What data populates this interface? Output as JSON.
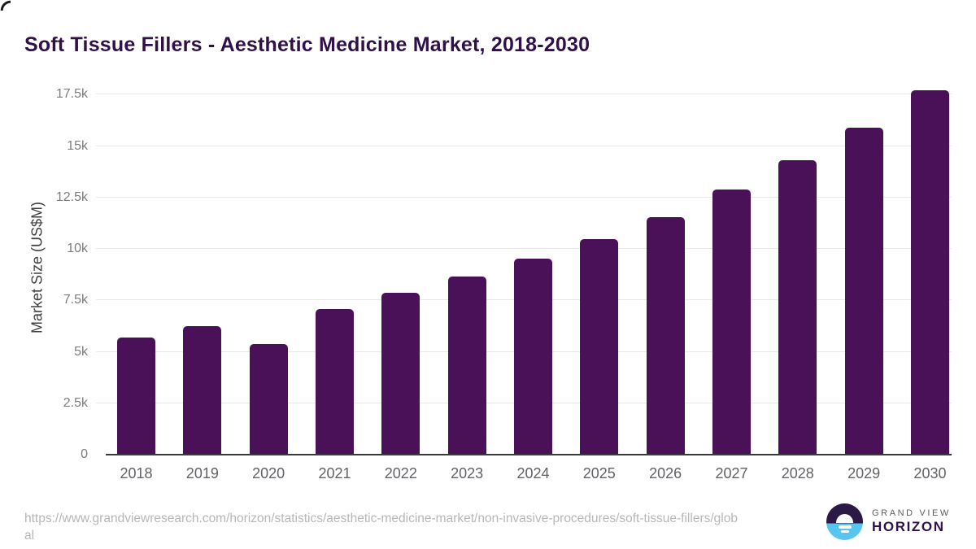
{
  "title": "Soft Tissue Fillers - Aesthetic Medicine Market, 2018-2030",
  "chart_data": {
    "type": "bar",
    "title": "Soft Tissue Fillers - Aesthetic Medicine Market, 2018-2030",
    "categories": [
      "2018",
      "2019",
      "2020",
      "2021",
      "2022",
      "2023",
      "2024",
      "2025",
      "2026",
      "2027",
      "2028",
      "2029",
      "2030"
    ],
    "values": [
      5700,
      6230,
      5360,
      7090,
      7860,
      8660,
      9520,
      10470,
      11550,
      12880,
      14330,
      15890,
      17700
    ],
    "xlabel": "",
    "ylabel": "Market Size (US$M)",
    "ylim": [
      0,
      18150
    ],
    "yticks": [
      {
        "value": 0,
        "label": "0"
      },
      {
        "value": 2500,
        "label": "2.5k"
      },
      {
        "value": 5000,
        "label": "5k"
      },
      {
        "value": 7500,
        "label": "7.5k"
      },
      {
        "value": 10000,
        "label": "10k"
      },
      {
        "value": 12500,
        "label": "12.5k"
      },
      {
        "value": 15000,
        "label": "15k"
      },
      {
        "value": 17500,
        "label": "17.5k"
      }
    ],
    "grid": true,
    "legend": null,
    "bar_color": "#4a1159"
  },
  "footer": {
    "source_url": "https://www.grandviewresearch.com/horizon/statistics/aesthetic-medicine-market/non-invasive-procedures/soft-tissue-fillers/global",
    "logo": {
      "line1": "GRAND VIEW",
      "line2": "HORIZON"
    }
  },
  "colors": {
    "title": "#2f1147",
    "bar": "#4a1159",
    "gridline": "#e8e8e8",
    "axis_line": "#3a3a3e",
    "y_tick_text": "#7a7c7f",
    "x_tick_text": "#606265",
    "source_text": "#b7b7b7",
    "logo_blue": "#58c5f1",
    "logo_dark": "#2b1a45"
  }
}
